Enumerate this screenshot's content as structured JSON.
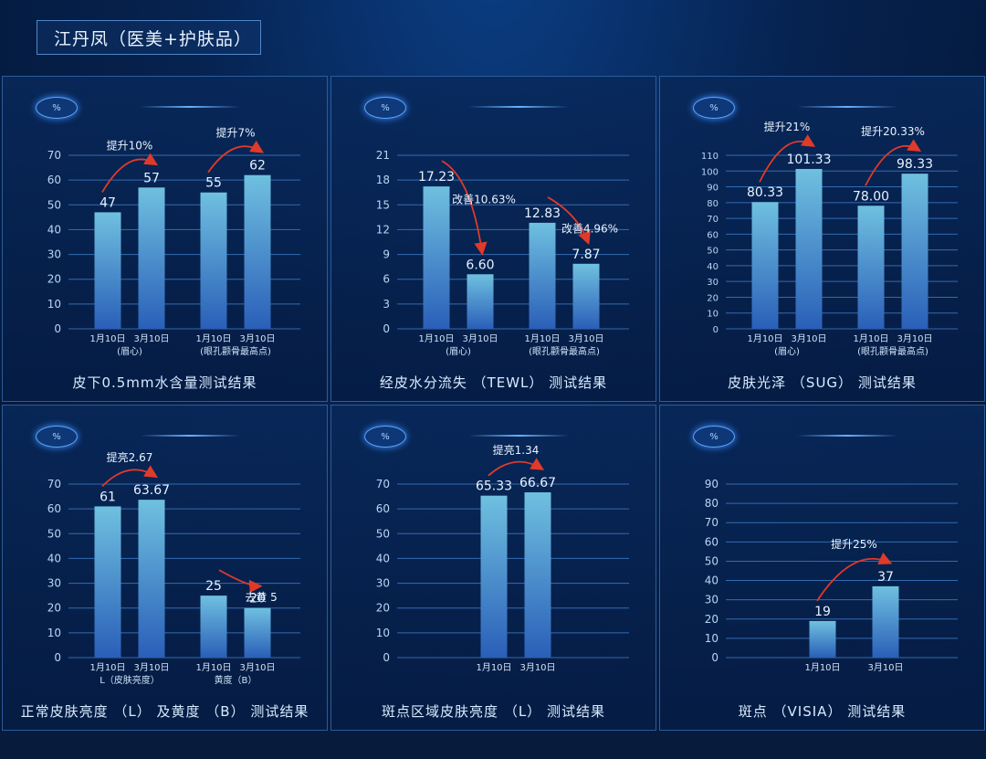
{
  "header": {
    "title": "江丹凤（医美+护肤品）"
  },
  "chart_data": [
    {
      "type": "bar",
      "title": "皮下0.5mm水含量测试结果",
      "ylim": [
        0,
        70
      ],
      "yticks": [
        0,
        10,
        20,
        30,
        40,
        50,
        60,
        70
      ],
      "categories": [
        "1月10日",
        "3月10日",
        "1月10日",
        "3月10日"
      ],
      "groups": [
        "(眉心)",
        "(眼孔颧骨最高点)"
      ],
      "values": [
        47,
        57,
        55,
        62
      ],
      "value_labels": [
        "47",
        "57",
        "55",
        "62"
      ],
      "annotations": [
        {
          "text": "提升10%",
          "from": 0,
          "to": 1
        },
        {
          "text": "提升7%",
          "from": 2,
          "to": 3
        }
      ]
    },
    {
      "type": "bar",
      "title": "经皮水分流失 （TEWL） 测试结果",
      "ylim": [
        0,
        21
      ],
      "yticks": [
        0,
        3,
        6,
        9,
        12,
        15,
        18,
        21
      ],
      "categories": [
        "1月10日",
        "3月10日",
        "1月10日",
        "3月10日"
      ],
      "groups": [
        "(眉心)",
        "(眼孔颧骨最高点)"
      ],
      "values": [
        17.23,
        6.6,
        12.83,
        7.87
      ],
      "value_labels": [
        "17.23",
        "6.60",
        "12.83",
        "7.87"
      ],
      "annotations": [
        {
          "text": "改善10.63%",
          "from": 0,
          "to": 1
        },
        {
          "text": "改善4.96%",
          "from": 2,
          "to": 3
        }
      ]
    },
    {
      "type": "bar",
      "title": "皮肤光泽 （SUG） 测试结果",
      "ylim": [
        0,
        110
      ],
      "yticks": [
        0,
        10,
        20,
        30,
        40,
        50,
        60,
        70,
        80,
        90,
        100,
        110
      ],
      "categories": [
        "1月10日",
        "3月10日",
        "1月10日",
        "3月10日"
      ],
      "groups": [
        "(眉心)",
        "(眼孔颧骨最高点)"
      ],
      "values": [
        80.33,
        101.33,
        78.0,
        98.33
      ],
      "value_labels": [
        "80.33",
        "101.33",
        "78.00",
        "98.33"
      ],
      "annotations": [
        {
          "text": "提升21%",
          "from": 0,
          "to": 1
        },
        {
          "text": "提升20.33%",
          "from": 2,
          "to": 3
        }
      ]
    },
    {
      "type": "bar",
      "title": "正常皮肤亮度 （L） 及黄度 （B） 测试结果",
      "ylim": [
        0,
        70
      ],
      "yticks": [
        0,
        10,
        20,
        30,
        40,
        50,
        60,
        70
      ],
      "categories": [
        "1月10日",
        "3月10日",
        "1月10日",
        "3月10日"
      ],
      "groups": [
        "L（皮肤亮度）",
        "黄度（B）"
      ],
      "values": [
        61,
        63.67,
        25,
        20
      ],
      "value_labels": [
        "61",
        "63.67",
        "25",
        "20"
      ],
      "annotations": [
        {
          "text": "提亮2.67",
          "from": 0,
          "to": 1
        },
        {
          "text": "去黄 5",
          "from": 2,
          "to": 3
        }
      ]
    },
    {
      "type": "bar",
      "title": "斑点区域皮肤亮度 （L） 测试结果",
      "ylim": [
        0,
        70
      ],
      "yticks": [
        0,
        10,
        20,
        30,
        40,
        50,
        60,
        70
      ],
      "categories": [
        "1月10日",
        "3月10日"
      ],
      "groups": [],
      "values": [
        65.33,
        66.67
      ],
      "value_labels": [
        "65.33",
        "66.67"
      ],
      "annotations": [
        {
          "text": "提亮1.34",
          "from": 0,
          "to": 1
        }
      ]
    },
    {
      "type": "bar",
      "title": "斑点 （VISIA） 测试结果",
      "ylim": [
        0,
        90
      ],
      "yticks": [
        0,
        10,
        20,
        30,
        40,
        50,
        60,
        70,
        80,
        90
      ],
      "categories": [
        "1月10日",
        "3月10日"
      ],
      "groups": [],
      "values": [
        19,
        37
      ],
      "value_labels": [
        "19",
        "37"
      ],
      "annotations": [
        {
          "text": "提升25%",
          "from": 0,
          "to": 1
        }
      ]
    }
  ],
  "colors": {
    "bar_top": "#6fc0e0",
    "bar_bottom": "#2a5fb8",
    "arrow": "#e03a2a",
    "grid": "#3c78c0"
  }
}
